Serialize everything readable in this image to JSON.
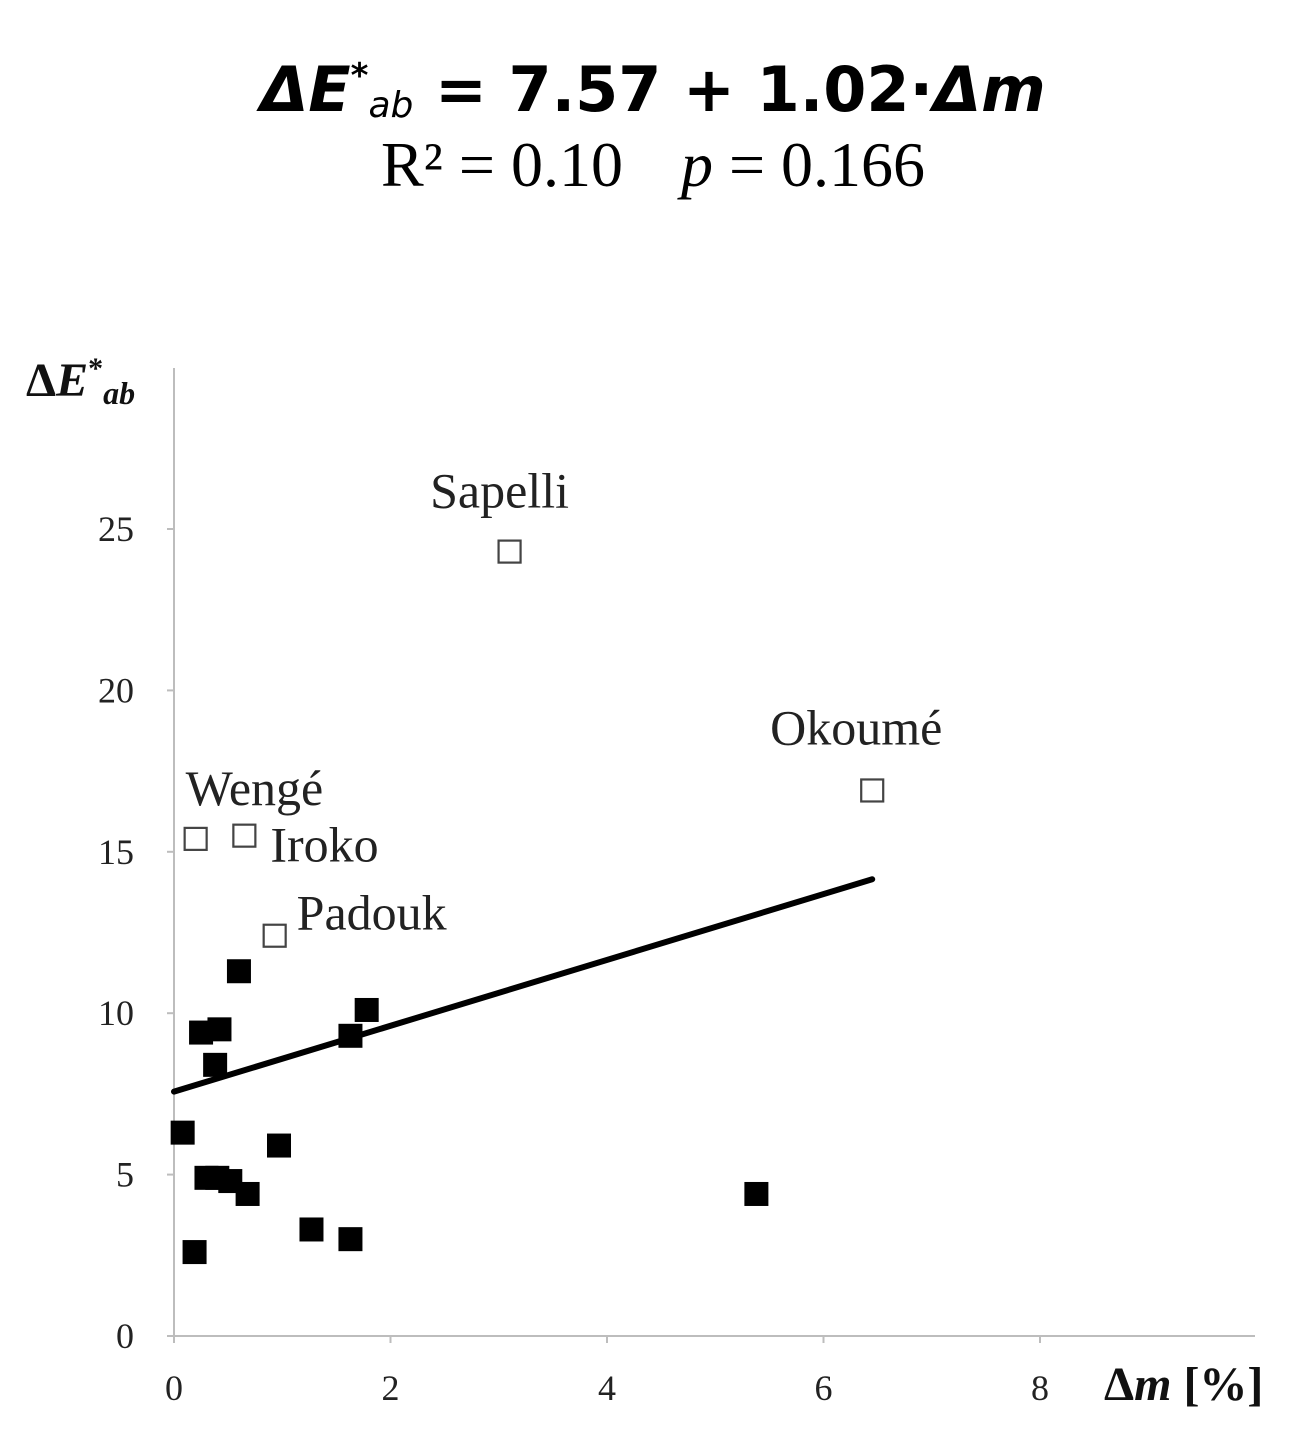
{
  "header": {
    "equation": {
      "lhs_symbol": "ΔE",
      "lhs_sup": "*",
      "lhs_sub": "ab",
      "rhs": " = 7.57 + 1.02·",
      "rhs_var": "Δm"
    },
    "stats": {
      "r2_label": "R² = 0.10",
      "p_symbol": "p",
      "p_value": " = 0.166"
    }
  },
  "chart_data": {
    "type": "scatter",
    "title": "",
    "xlabel": "Δm [%]",
    "ylabel": "ΔE*ab",
    "xlim": [
      0,
      10
    ],
    "ylim": [
      0,
      28
    ],
    "x_ticks": [
      0,
      2,
      4,
      6,
      8
    ],
    "y_ticks": [
      0,
      5,
      10,
      15,
      20,
      25
    ],
    "x_tick_labels": [
      "0",
      "2",
      "4",
      "6",
      "8"
    ],
    "y_tick_labels": [
      "0",
      "5",
      "10",
      "15",
      "20",
      "25"
    ],
    "grid": false,
    "series": [
      {
        "marker": "filled-square",
        "color": "#000000",
        "points": [
          {
            "x": 0.08,
            "y": 6.3
          },
          {
            "x": 0.19,
            "y": 2.6
          },
          {
            "x": 0.25,
            "y": 9.4
          },
          {
            "x": 0.3,
            "y": 4.9
          },
          {
            "x": 0.38,
            "y": 8.4
          },
          {
            "x": 0.4,
            "y": 4.9
          },
          {
            "x": 0.42,
            "y": 9.5
          },
          {
            "x": 0.52,
            "y": 4.8
          },
          {
            "x": 0.6,
            "y": 11.3
          },
          {
            "x": 0.68,
            "y": 4.4
          },
          {
            "x": 0.97,
            "y": 5.9
          },
          {
            "x": 1.27,
            "y": 3.3
          },
          {
            "x": 1.63,
            "y": 3.0
          },
          {
            "x": 1.63,
            "y": 9.3
          },
          {
            "x": 1.78,
            "y": 10.1
          },
          {
            "x": 5.38,
            "y": 4.4
          }
        ]
      },
      {
        "marker": "open-square",
        "color": "#444444",
        "points": [
          {
            "x": 0.2,
            "y": 15.4,
            "label": "Wengé"
          },
          {
            "x": 0.65,
            "y": 15.5,
            "label": "Iroko"
          },
          {
            "x": 0.93,
            "y": 12.4,
            "label": "Padouk"
          },
          {
            "x": 3.1,
            "y": 24.3,
            "label": "Sapelli"
          },
          {
            "x": 6.45,
            "y": 16.9,
            "label": "Okoumé"
          }
        ]
      }
    ],
    "trendline": {
      "intercept": 7.57,
      "slope": 1.02,
      "x_range": [
        0,
        6.45
      ],
      "color": "#000000"
    }
  }
}
